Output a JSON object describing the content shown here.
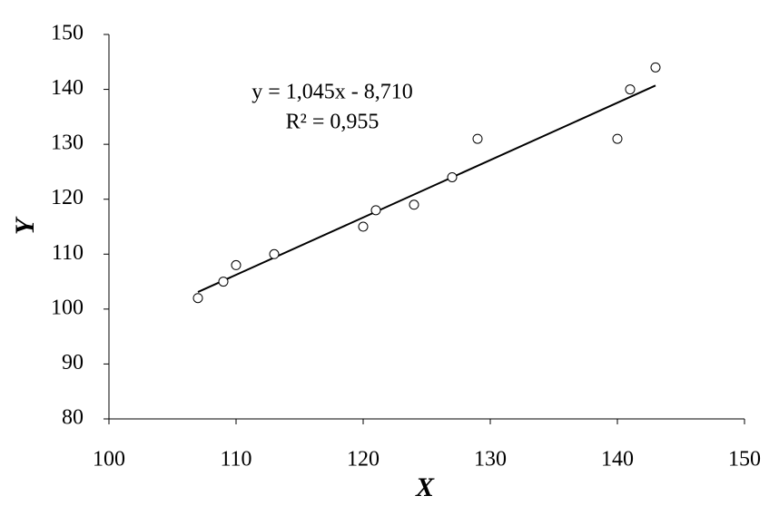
{
  "chart_data": {
    "type": "scatter",
    "x_label": "X",
    "y_label": "Y",
    "annotations": [
      "y = 1,045x - 8,710",
      "R² = 0,955"
    ],
    "x": [
      107,
      109,
      110,
      113,
      120,
      121,
      124,
      127,
      129,
      140,
      141,
      143
    ],
    "values": [
      102,
      105,
      108,
      110,
      115,
      118,
      119,
      124,
      131,
      131,
      140,
      144
    ],
    "color": "#000000",
    "trendline": {
      "x": [
        107,
        143
      ],
      "y": [
        103.1,
        140.7
      ],
      "color": "#000000"
    },
    "xlim": [
      100,
      150
    ],
    "xticks": [
      100,
      110,
      120,
      130,
      140,
      150
    ],
    "ylim": [
      80,
      150
    ],
    "yticks": [
      80,
      90,
      100,
      110,
      120,
      130,
      140,
      150
    ],
    "grid": false
  }
}
